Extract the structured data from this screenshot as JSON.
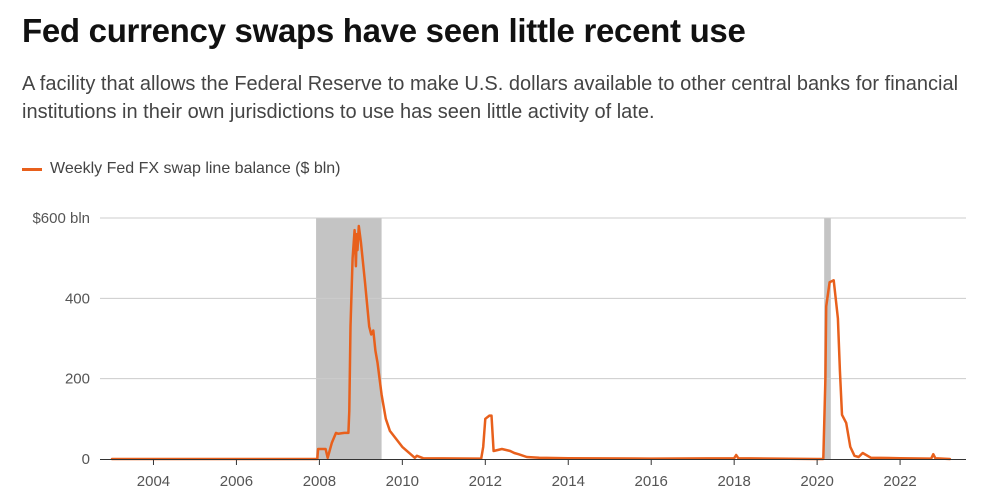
{
  "title": "Fed currency swaps have seen little recent use",
  "subtitle": "A facility that allows the Federal Reserve to make U.S. dollars available to other central banks for financial institutions in their own jurisdictions to use has seen little activity of late.",
  "legend": {
    "label": "Weekly Fed FX swap line balance ($ bln)"
  },
  "colors": {
    "line": "#e8601c",
    "shade": "#c4c4c4",
    "grid": "#cccccc",
    "axis": "#333333"
  },
  "chart_data": {
    "type": "line",
    "series": [
      {
        "name": "Weekly Fed FX swap line balance ($ bln)",
        "x": [
          2003.0,
          2007.6,
          2007.95,
          2007.97,
          2008.15,
          2008.2,
          2008.3,
          2008.4,
          2008.45,
          2008.6,
          2008.7,
          2008.72,
          2008.75,
          2008.8,
          2008.85,
          2008.88,
          2008.9,
          2008.92,
          2008.95,
          2009.0,
          2009.1,
          2009.2,
          2009.25,
          2009.3,
          2009.35,
          2009.4,
          2009.5,
          2009.6,
          2009.7,
          2009.85,
          2010.0,
          2010.3,
          2010.35,
          2010.5,
          2011.9,
          2011.95,
          2012.0,
          2012.1,
          2012.15,
          2012.2,
          2012.4,
          2012.6,
          2012.7,
          2012.8,
          2013.0,
          2013.3,
          2014.0,
          2016.0,
          2018.0,
          2018.05,
          2018.1,
          2020.0,
          2020.15,
          2020.2,
          2020.22,
          2020.3,
          2020.4,
          2020.5,
          2020.55,
          2020.6,
          2020.7,
          2020.8,
          2020.9,
          2021.0,
          2021.1,
          2021.3,
          2022.0,
          2022.75,
          2022.8,
          2022.85,
          2023.2
        ],
        "values": [
          0,
          0,
          0,
          25,
          25,
          3,
          40,
          65,
          63,
          65,
          65,
          120,
          330,
          500,
          570,
          480,
          560,
          520,
          580,
          540,
          440,
          330,
          310,
          320,
          270,
          240,
          160,
          100,
          70,
          50,
          30,
          3,
          8,
          2,
          1,
          30,
          100,
          108,
          108,
          20,
          25,
          20,
          15,
          12,
          5,
          3,
          2,
          1,
          2,
          10,
          2,
          0,
          0,
          200,
          380,
          440,
          445,
          350,
          220,
          110,
          90,
          30,
          8,
          5,
          15,
          3,
          2,
          1,
          12,
          2,
          0
        ]
      }
    ],
    "shaded_regions": [
      [
        2007.92,
        2009.5
      ],
      [
        2020.17,
        2020.33
      ]
    ],
    "xlim": [
      2003,
      2023.3
    ],
    "ylim": [
      0,
      600
    ],
    "xticks": [
      2004,
      2006,
      2008,
      2010,
      2012,
      2014,
      2016,
      2018,
      2020,
      2022
    ],
    "xtick_labels": [
      "2004",
      "2006",
      "2008",
      "2010",
      "2012",
      "2014",
      "2016",
      "2018",
      "2020",
      "2022"
    ],
    "yticks": [
      0,
      200,
      400,
      600
    ],
    "ytick_labels": [
      "0",
      "200",
      "400",
      "$600 bln"
    ],
    "title": "Fed currency swaps have seen little recent use",
    "xlabel": "",
    "ylabel": "",
    "grid": true
  }
}
